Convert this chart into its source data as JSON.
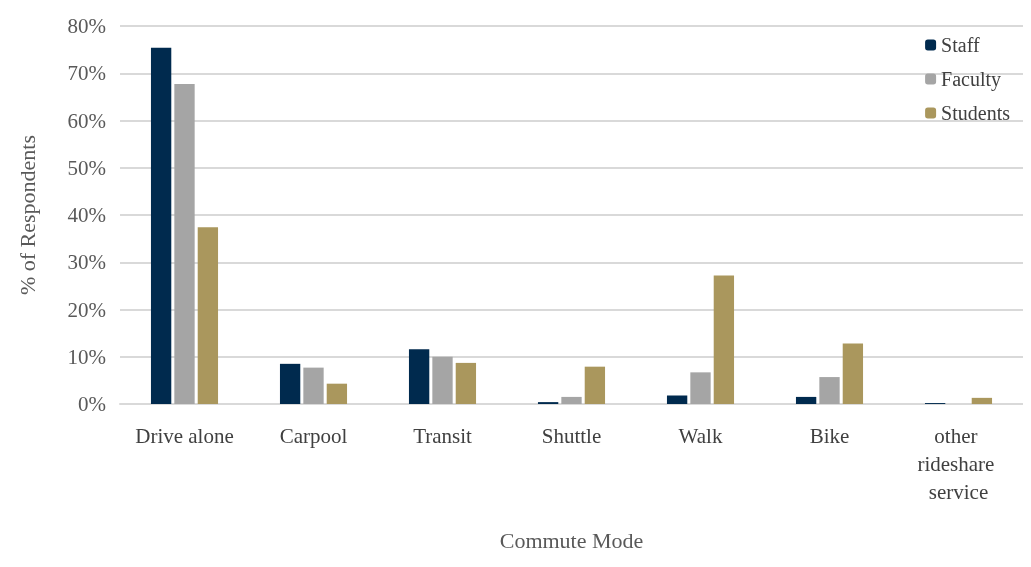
{
  "chart_data": {
    "type": "bar",
    "xlabel": "Commute Mode",
    "ylabel": "% of Respondents",
    "categories": [
      "Drive alone",
      "Carpool",
      "Transit",
      "Shuttle",
      "Walk",
      "Bike",
      "other rideshare service"
    ],
    "series": [
      {
        "name": "Staff",
        "color": "#002a4e",
        "values": [
          75.4,
          8.5,
          11.6,
          0.4,
          1.8,
          1.5,
          0.2
        ]
      },
      {
        "name": "Faculty",
        "color": "#a5a5a5",
        "values": [
          67.7,
          7.7,
          10.0,
          1.5,
          6.7,
          5.7,
          0
        ]
      },
      {
        "name": "Students",
        "color": "#aa975d",
        "values": [
          37.4,
          4.3,
          8.7,
          7.9,
          27.2,
          12.8,
          1.3
        ]
      }
    ],
    "ylim": [
      0,
      80
    ],
    "yticks": [
      {
        "value": 0,
        "label": "0%"
      },
      {
        "value": 10,
        "label": "10%"
      },
      {
        "value": 20,
        "label": "20%"
      },
      {
        "value": 30,
        "label": "30%"
      },
      {
        "value": 40,
        "label": "40%"
      },
      {
        "value": 50,
        "label": "50%"
      },
      {
        "value": 60,
        "label": "60%"
      },
      {
        "value": 70,
        "label": "70%"
      },
      {
        "value": 80,
        "label": "80%"
      }
    ],
    "grid": "y",
    "legend": "top right"
  }
}
